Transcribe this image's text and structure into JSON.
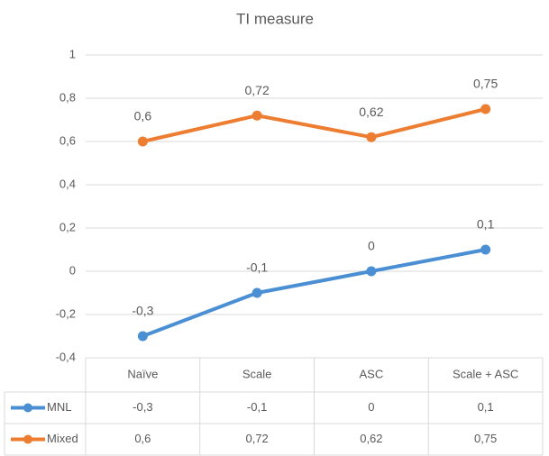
{
  "chart_data": {
    "type": "line",
    "title": "TI measure",
    "categories": [
      "Naïve",
      "Scale",
      "ASC",
      "Scale + ASC"
    ],
    "series": [
      {
        "name": "MNL",
        "color": "#4a8fd4",
        "values": [
          -0.3,
          -0.1,
          0,
          0.1
        ],
        "value_labels": [
          "-0,3",
          "-0,1",
          "0",
          "0,1"
        ]
      },
      {
        "name": "Mixed",
        "color": "#ed7d31",
        "values": [
          0.6,
          0.72,
          0.62,
          0.75
        ],
        "value_labels": [
          "0,6",
          "0,72",
          "0,62",
          "0,75"
        ]
      }
    ],
    "ylim": [
      -0.4,
      1
    ],
    "yticks": [
      {
        "value": -0.4,
        "label": "-0,4"
      },
      {
        "value": -0.2,
        "label": "-0,2"
      },
      0,
      {
        "value": 0.2,
        "label": "0,2"
      },
      {
        "value": 0.4,
        "label": "0,4"
      },
      {
        "value": 0.6,
        "label": "0,6"
      },
      {
        "value": 0.8,
        "label": "0,8"
      },
      1
    ],
    "grid": true
  }
}
